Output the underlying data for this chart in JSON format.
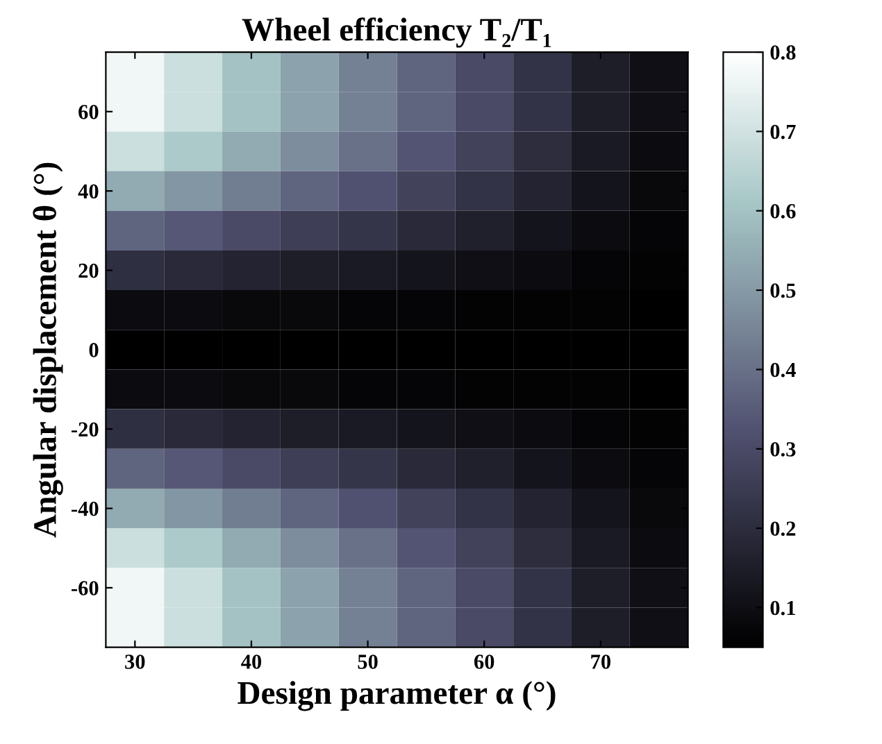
{
  "chart_data": {
    "type": "heatmap",
    "title": "Wheel efficiency T₂/T₁",
    "xlabel": "Design parameter α (°)",
    "ylabel": "Angular displacement θ (°)",
    "categories": [
      "30",
      null,
      "40",
      null,
      "50",
      null,
      "60",
      null,
      "70",
      null
    ],
    "y_categories": [
      null,
      "60",
      null,
      "40",
      null,
      "20",
      null,
      "0",
      null,
      "-20",
      null,
      "-40",
      null,
      "-60",
      null
    ],
    "cells": [
      [
        0.77,
        0.69,
        0.6,
        0.52,
        0.44,
        0.37,
        0.3,
        0.22,
        0.15,
        0.1
      ],
      [
        0.77,
        0.69,
        0.6,
        0.52,
        0.44,
        0.37,
        0.3,
        0.22,
        0.15,
        0.1
      ],
      [
        0.69,
        0.62,
        0.54,
        0.47,
        0.4,
        0.33,
        0.27,
        0.2,
        0.14,
        0.09
      ],
      [
        0.54,
        0.49,
        0.43,
        0.37,
        0.32,
        0.27,
        0.22,
        0.17,
        0.12,
        0.08
      ],
      [
        0.37,
        0.34,
        0.3,
        0.26,
        0.23,
        0.19,
        0.16,
        0.12,
        0.09,
        0.07
      ],
      [
        0.21,
        0.19,
        0.17,
        0.15,
        0.14,
        0.12,
        0.1,
        0.09,
        0.07,
        0.06
      ],
      [
        0.09,
        0.09,
        0.08,
        0.08,
        0.07,
        0.07,
        0.06,
        0.06,
        0.06,
        0.05
      ],
      [
        0.05,
        0.05,
        0.05,
        0.05,
        0.05,
        0.05,
        0.05,
        0.05,
        0.05,
        0.05
      ],
      [
        0.09,
        0.09,
        0.08,
        0.08,
        0.07,
        0.07,
        0.06,
        0.06,
        0.06,
        0.05
      ],
      [
        0.21,
        0.19,
        0.17,
        0.15,
        0.14,
        0.12,
        0.1,
        0.09,
        0.07,
        0.06
      ],
      [
        0.37,
        0.34,
        0.3,
        0.26,
        0.23,
        0.19,
        0.16,
        0.12,
        0.09,
        0.07
      ],
      [
        0.54,
        0.49,
        0.43,
        0.37,
        0.32,
        0.27,
        0.22,
        0.17,
        0.12,
        0.08
      ],
      [
        0.69,
        0.62,
        0.54,
        0.47,
        0.4,
        0.33,
        0.27,
        0.2,
        0.14,
        0.09
      ],
      [
        0.77,
        0.69,
        0.6,
        0.52,
        0.44,
        0.37,
        0.3,
        0.22,
        0.15,
        0.1
      ],
      [
        0.77,
        0.69,
        0.6,
        0.52,
        0.44,
        0.37,
        0.3,
        0.22,
        0.15,
        0.1
      ]
    ],
    "clim": [
      0.05,
      0.8
    ],
    "cticks": [
      0.1,
      0.2,
      0.3,
      0.4,
      0.5,
      0.6,
      0.7,
      0.8
    ],
    "grid": false
  }
}
